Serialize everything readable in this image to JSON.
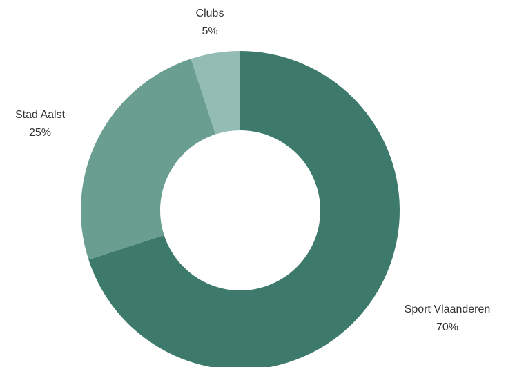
{
  "chart_data": {
    "type": "pie",
    "variant": "donut",
    "title": "",
    "legend": "none",
    "slices": [
      {
        "label": "Sport Vlaanderen",
        "value": 70,
        "value_label": "70%",
        "color": "#3d7a6c"
      },
      {
        "label": "Stad Aalst",
        "value": 25,
        "value_label": "25%",
        "color": "#6a9e91"
      },
      {
        "label": "Clubs",
        "value": 5,
        "value_label": "5%",
        "color": "#93bcb4"
      }
    ]
  }
}
